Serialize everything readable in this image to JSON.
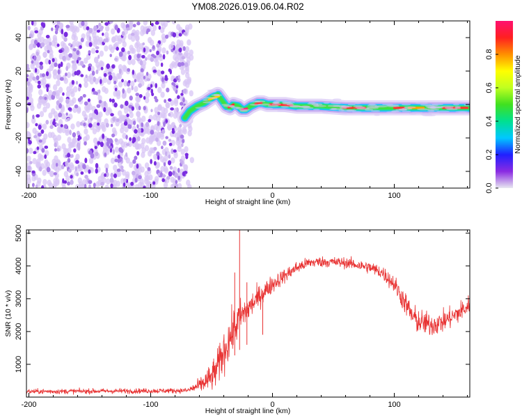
{
  "title": "YM08.2026.019.06.04.R02",
  "colors": {
    "snr_line": "#e83030",
    "noise_dot": "#7a2de0",
    "noise_haze": "#d8c6f5",
    "colorbar": [
      "#e8e8f0",
      "#8a2be2",
      "#2020ff",
      "#00c8ff",
      "#00e090",
      "#40e020",
      "#c0ff20",
      "#ffff00",
      "#ff9000",
      "#ff2020",
      "#ff1070"
    ]
  },
  "chart_data": [
    {
      "type": "heatmap",
      "name": "spectrogram",
      "xlabel": "Height of straight line (km)",
      "ylabel": "Frequency (Hz)",
      "xlim": [
        -202,
        162
      ],
      "ylim": [
        -50,
        50
      ],
      "xticks": [
        -200,
        -100,
        0,
        100
      ],
      "xtick_labels": [
        "-200",
        "-100",
        "0",
        "100"
      ],
      "yticks": [
        -40,
        -20,
        0,
        20,
        40
      ],
      "ytick_labels": [
        "-40",
        "-20",
        "0",
        "20",
        "40"
      ],
      "noise_region_x": [
        -202,
        -70
      ],
      "signal_ridge": {
        "x": [
          -72,
          -68,
          -62,
          -56,
          -50,
          -45,
          -42,
          -38,
          -35,
          -32,
          -28,
          -25,
          -22,
          -18,
          -15,
          -12,
          -8,
          -4,
          0,
          10,
          20,
          40,
          60,
          80,
          84,
          90,
          100,
          110,
          130,
          162
        ],
        "hz": [
          -8,
          -4,
          -1,
          1,
          4,
          6,
          3,
          -1,
          -2,
          0,
          -1,
          -3,
          -3,
          -1,
          0,
          1,
          1,
          0,
          0,
          0,
          -1,
          -1,
          -2,
          -2,
          -2,
          -2,
          -2,
          -2,
          -2,
          -2
        ]
      },
      "colorbar": {
        "label": "Normalized spectral amplitude",
        "range": [
          0,
          1
        ],
        "ticks": [
          0.0,
          0.2,
          0.4,
          0.6,
          0.8
        ],
        "tick_labels": [
          "0.0",
          "0.2",
          "0.4",
          "0.6",
          "0.8"
        ]
      }
    },
    {
      "type": "line",
      "name": "snr",
      "xlabel": "Height of straight line (km)",
      "ylabel": "SNR (10 * v/v)",
      "xlim": [
        -202,
        162
      ],
      "ylim": [
        0,
        5100
      ],
      "xticks": [
        -200,
        -100,
        0,
        100
      ],
      "xtick_labels": [
        "-200",
        "-100",
        "0",
        "100"
      ],
      "yticks": [
        1000,
        2000,
        3000,
        4000,
        5000
      ],
      "ytick_labels": [
        "1000",
        "2000",
        "3000",
        "4000",
        "5000"
      ],
      "envelope": {
        "x": [
          -202,
          -150,
          -100,
          -70,
          -60,
          -50,
          -45,
          -40,
          -35,
          -30,
          -27,
          -25,
          -20,
          -15,
          -10,
          0,
          10,
          20,
          30,
          40,
          60,
          80,
          90,
          100,
          110,
          115,
          120,
          130,
          140,
          150,
          162
        ],
        "mean": [
          170,
          180,
          190,
          200,
          350,
          600,
          900,
          1400,
          1800,
          2200,
          2400,
          2500,
          2700,
          2900,
          3100,
          3450,
          3700,
          3950,
          4100,
          4130,
          4100,
          3950,
          3800,
          3450,
          2800,
          2450,
          2300,
          2200,
          2300,
          2500,
          2800
        ],
        "noise": [
          70,
          70,
          70,
          70,
          200,
          400,
          500,
          600,
          600,
          550,
          500,
          450,
          400,
          350,
          300,
          250,
          200,
          180,
          150,
          150,
          150,
          170,
          200,
          250,
          320,
          350,
          350,
          330,
          300,
          300,
          300
        ]
      },
      "spikes": [
        {
          "x": -27,
          "y": 5100
        },
        {
          "x": -31,
          "y": 3800
        },
        {
          "x": -8,
          "y": 3250
        },
        {
          "x": -21,
          "y": 3500
        }
      ]
    }
  ]
}
